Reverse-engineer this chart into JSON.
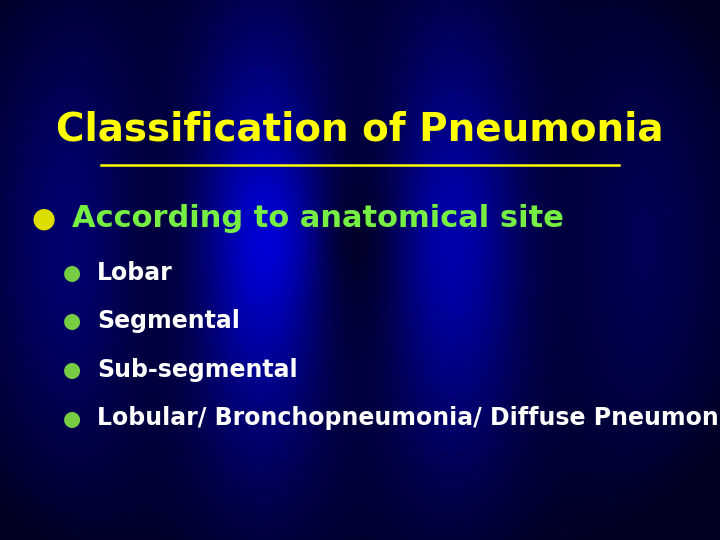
{
  "title": "Classification of Pneumonia",
  "title_color": "#FFFF00",
  "title_fontsize": 28,
  "bg_color_center": "#0000DD",
  "bg_color_edge": "#000020",
  "bullet1_text": "According to anatomical site",
  "bullet1_color": "#77EE44",
  "bullet1_fontsize": 22,
  "bullet1_bullet_color": "#DDDD00",
  "sub_bullets": [
    "Lobar",
    "Segmental",
    "Sub-segmental",
    "Lobular/ Bronchopneumonia/ Diffuse Pneumonia"
  ],
  "sub_bullet_color": "#FFFFFF",
  "sub_bullet_dot_color": "#77CC44",
  "sub_bullet_fontsize": 17
}
